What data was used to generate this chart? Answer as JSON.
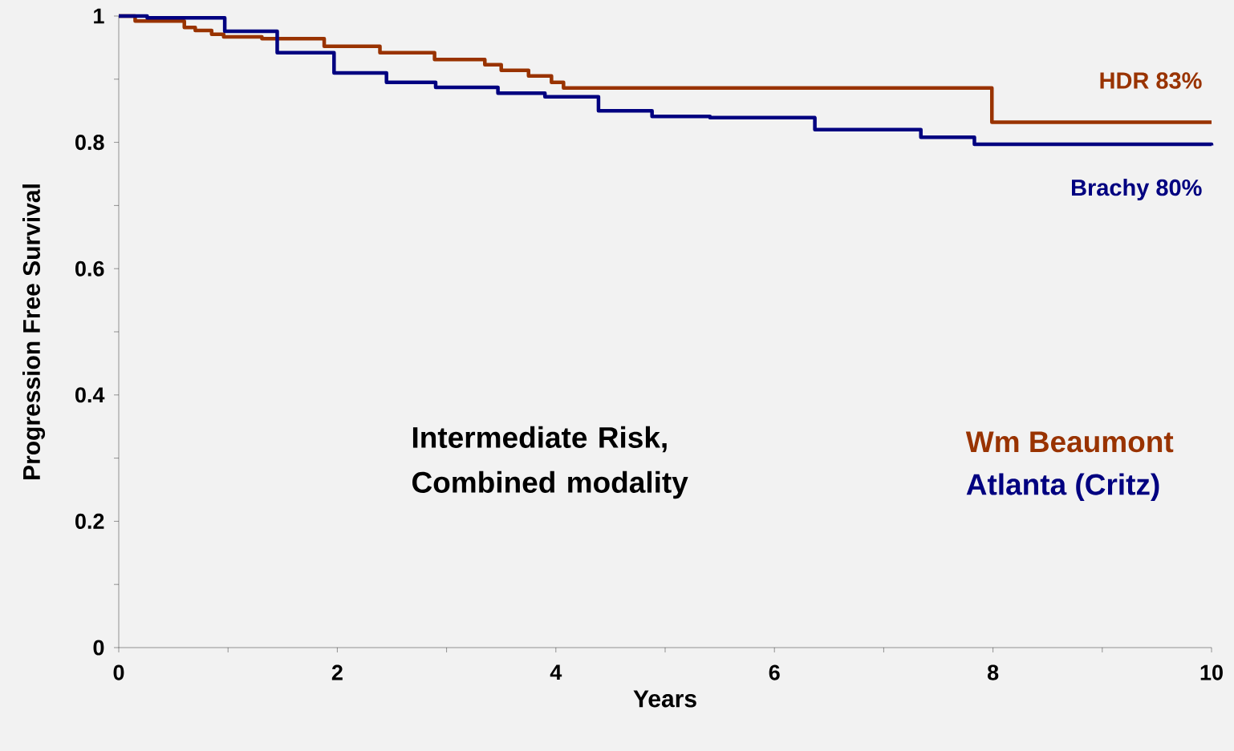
{
  "chart_data": {
    "type": "step",
    "xlabel": "Years",
    "ylabel": "Progression Free Survival",
    "xlim": [
      0,
      10
    ],
    "ylim": [
      0,
      1
    ],
    "xticks": [
      0,
      2,
      4,
      6,
      8,
      10
    ],
    "yticks": [
      0,
      0.2,
      0.4,
      0.6,
      0.8,
      1
    ],
    "legend": "bottom right",
    "grid": false,
    "marker": "none",
    "line_style": "solid",
    "series": [
      {
        "name": "Wm Beaumont",
        "color": "#993300",
        "x": [
          0,
          0.15,
          0.6,
          0.7,
          0.85,
          0.96,
          1.31,
          1.88,
          2.39,
          2.89,
          3.35,
          3.5,
          3.75,
          3.96,
          4.07,
          7.99,
          10
        ],
        "values": [
          1,
          0.992,
          0.982,
          0.977,
          0.971,
          0.967,
          0.964,
          0.952,
          0.942,
          0.931,
          0.923,
          0.914,
          0.905,
          0.895,
          0.886,
          0.832,
          0.832
        ]
      },
      {
        "name": "Atlanta (Critz)",
        "color": "#000080",
        "x": [
          0,
          0.26,
          0.97,
          1.45,
          1.97,
          2.45,
          2.9,
          3.47,
          3.9,
          4.39,
          4.88,
          5.41,
          6.37,
          7.34,
          7.83,
          10
        ],
        "values": [
          1,
          0.997,
          0.976,
          0.942,
          0.91,
          0.895,
          0.887,
          0.878,
          0.872,
          0.85,
          0.841,
          0.839,
          0.82,
          0.808,
          0.797,
          0.795
        ]
      }
    ],
    "annotations": [
      "HDR  83%",
      "Brachy  80%",
      "Intermediate Risk, Combined modality"
    ]
  }
}
